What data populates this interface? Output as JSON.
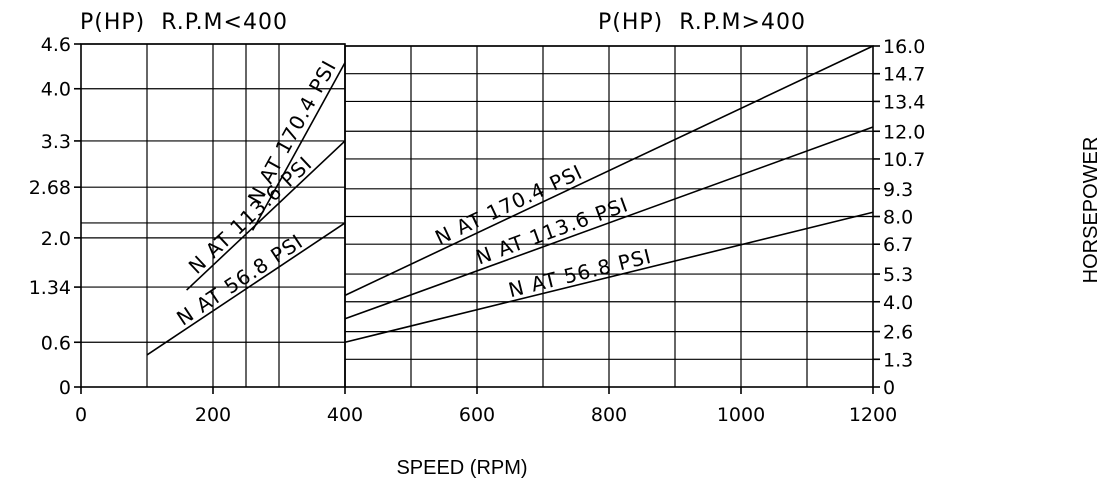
{
  "chart_data": {
    "type": "line",
    "xlabel": "SPEED (RPM)",
    "ylabel": "HORSEPOWER",
    "xlim": [
      0,
      1200
    ],
    "x_ticks": [
      "0",
      "200",
      "400",
      "600",
      "800",
      "1000",
      "1200"
    ],
    "grid": true,
    "panels": [
      {
        "title": "P(HP)  R.P.M<400",
        "axis_side": "left",
        "xlim": [
          0,
          400
        ],
        "ylim": [
          0,
          4.6
        ],
        "y_ticks": [
          "0",
          "0.6",
          "1.34",
          "2.0",
          "2.68",
          "3.3",
          "4.0",
          "4.6"
        ],
        "y_tick_values": [
          0,
          0.6,
          1.34,
          2.0,
          2.68,
          3.3,
          4.0,
          4.6
        ],
        "series": [
          {
            "name": "N AT 170.4 PSI",
            "x": [
              260,
              400
            ],
            "y": [
              2.1,
              4.35
            ]
          },
          {
            "name": "N AT 113.6 PSI",
            "x": [
              160,
              400
            ],
            "y": [
              1.3,
              3.3
            ]
          },
          {
            "name": "N AT 56.8 PSI",
            "x": [
              100,
              400
            ],
            "y": [
              0.43,
              2.2
            ]
          }
        ]
      },
      {
        "title": "P(HP)  R.P.M>400",
        "axis_side": "right",
        "xlim": [
          400,
          1200
        ],
        "ylim": [
          0,
          16.0
        ],
        "y_ticks": [
          "0",
          "1.3",
          "2.6",
          "4.0",
          "5.3",
          "6.7",
          "8.0",
          "9.3",
          "10.7",
          "12.0",
          "13.4",
          "14.7",
          "16.0"
        ],
        "y_tick_values": [
          0,
          1.3,
          2.6,
          4.0,
          5.3,
          6.7,
          8.0,
          9.3,
          10.7,
          12.0,
          13.4,
          14.7,
          16.0
        ],
        "series": [
          {
            "name": "N AT 170.4 PSI",
            "x": [
              400,
              1200
            ],
            "y": [
              4.3,
              16.0
            ]
          },
          {
            "name": "N AT 113.6 PSI",
            "x": [
              400,
              1200
            ],
            "y": [
              3.2,
              12.2
            ]
          },
          {
            "name": "N AT 56.8 PSI",
            "x": [
              400,
              1200
            ],
            "y": [
              2.1,
              8.2
            ]
          }
        ]
      }
    ],
    "left_extra_hline": 2.2
  }
}
